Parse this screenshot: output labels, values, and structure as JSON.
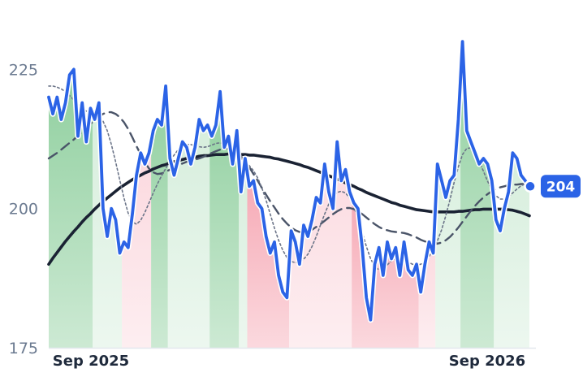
{
  "chart_data": {
    "type": "line",
    "title": "",
    "xlabel": "",
    "ylabel": "",
    "ylim": [
      175,
      236
    ],
    "y_ticks": [
      175,
      200,
      225
    ],
    "x_ticks": [
      "Sep 2025",
      "Sep 2026"
    ],
    "grid": false,
    "legend": "none",
    "last_value_label": "204",
    "colors": {
      "price": "#2b63e6",
      "slow_ma": "#1a2233",
      "mid_ma": "#4a5468",
      "fast_ma": "#6b7488",
      "up_strong": "#8fcf9e",
      "up_light": "#d6eedc",
      "down_strong": "#f6aab6",
      "down_light": "#fbd9df"
    },
    "series": [
      {
        "role": "price",
        "values": [
          220,
          217,
          220,
          216,
          219,
          224,
          225,
          213,
          219,
          212,
          218,
          216,
          219,
          200,
          195,
          200,
          198,
          192,
          194,
          193,
          199,
          206,
          210,
          208,
          210,
          214,
          216,
          215,
          222,
          209,
          206,
          209,
          212,
          211,
          208,
          211,
          216,
          214,
          215,
          213,
          215,
          221,
          211,
          213,
          208,
          214,
          203,
          209,
          204,
          205,
          201,
          200,
          195,
          192,
          194,
          188,
          185,
          184,
          196,
          194,
          190,
          197,
          195,
          198,
          202,
          201,
          208,
          203,
          200,
          212,
          205,
          207,
          203,
          201,
          200,
          193,
          184,
          180,
          190,
          193,
          188,
          194,
          191,
          193,
          188,
          194,
          189,
          188,
          190,
          185,
          190,
          194,
          192,
          208,
          205,
          202,
          205,
          206,
          216,
          230,
          214,
          212,
          210,
          208,
          209,
          208,
          205,
          198,
          196,
          200,
          203,
          210,
          209,
          206,
          205,
          204
        ]
      },
      {
        "role": "slow_ma",
        "values": [
          190.0,
          191.1,
          192.1,
          193.1,
          194.1,
          195.0,
          195.9,
          196.7,
          197.6,
          198.4,
          199.1,
          199.9,
          200.6,
          201.3,
          201.9,
          202.5,
          203.1,
          203.7,
          204.2,
          204.7,
          205.2,
          205.6,
          206.0,
          206.4,
          206.7,
          207.1,
          207.4,
          207.7,
          207.9,
          208.2,
          208.4,
          208.6,
          208.8,
          209.0,
          209.1,
          209.2,
          209.4,
          209.5,
          209.5,
          209.6,
          209.7,
          209.7,
          209.7,
          209.8,
          209.8,
          209.7,
          209.7,
          209.7,
          209.6,
          209.6,
          209.5,
          209.4,
          209.3,
          209.2,
          209.0,
          208.9,
          208.7,
          208.5,
          208.3,
          208.1,
          207.9,
          207.6,
          207.4,
          207.1,
          206.8,
          206.5,
          206.2,
          205.9,
          205.6,
          205.3,
          205.0,
          204.6,
          204.3,
          204.0,
          203.6,
          203.3,
          202.9,
          202.6,
          202.3,
          202.0,
          201.7,
          201.4,
          201.1,
          200.9,
          200.6,
          200.4,
          200.2,
          200.0,
          199.8,
          199.7,
          199.6,
          199.5,
          199.4,
          199.4,
          199.4,
          199.4,
          199.4,
          199.4,
          199.5,
          199.5,
          199.6,
          199.7,
          199.8,
          199.8,
          199.9,
          199.9,
          199.9,
          199.9,
          199.9,
          199.9,
          199.8,
          199.7,
          199.5,
          199.3,
          199.0,
          198.7
        ]
      },
      {
        "role": "mid_ma",
        "values": [
          209.0,
          209.5,
          210.0,
          210.6,
          211.2,
          211.8,
          212.4,
          213.1,
          213.8,
          214.5,
          215.2,
          215.9,
          216.5,
          217.0,
          217.3,
          217.3,
          217.0,
          216.4,
          215.5,
          214.3,
          212.8,
          211.2,
          209.7,
          208.3,
          207.2,
          206.5,
          206.2,
          206.3,
          206.6,
          207.0,
          207.4,
          207.8,
          208.1,
          208.4,
          208.6,
          208.8,
          209.0,
          209.3,
          209.6,
          210.0,
          210.3,
          210.6,
          210.8,
          210.8,
          210.6,
          210.1,
          209.4,
          208.5,
          207.4,
          206.2,
          205.0,
          203.7,
          202.5,
          201.3,
          200.2,
          199.1,
          198.1,
          197.3,
          196.6,
          196.1,
          195.8,
          195.7,
          195.9,
          196.2,
          196.7,
          197.2,
          197.8,
          198.4,
          199.0,
          199.5,
          199.9,
          200.1,
          200.1,
          199.9,
          199.5,
          199.0,
          198.4,
          197.8,
          197.2,
          196.7,
          196.3,
          196.1,
          195.9,
          195.8,
          195.7,
          195.6,
          195.4,
          195.1,
          194.8,
          194.4,
          194.1,
          193.8,
          193.7,
          193.7,
          193.9,
          194.3,
          194.9,
          195.7,
          196.6,
          197.6,
          198.6,
          199.6,
          200.5,
          201.3,
          202.0,
          202.6,
          203.1,
          203.5,
          203.8,
          204.0,
          204.2,
          204.3,
          204.3,
          204.4,
          204.4,
          204.4
        ]
      },
      {
        "role": "fast_ma",
        "values": [
          222.0,
          222.0,
          221.8,
          221.5,
          221.0,
          220.3,
          219.5,
          218.7,
          218.0,
          217.5,
          217.2,
          217.0,
          216.6,
          215.7,
          214.0,
          211.5,
          208.4,
          205.1,
          201.9,
          199.2,
          197.6,
          197.2,
          197.9,
          199.3,
          201.0,
          202.8,
          204.4,
          205.9,
          207.2,
          208.5,
          209.6,
          210.6,
          211.2,
          211.5,
          211.5,
          211.3,
          211.1,
          211.0,
          211.1,
          211.4,
          211.7,
          211.8,
          211.6,
          211.1,
          210.4,
          209.7,
          209.0,
          208.4,
          207.7,
          206.8,
          205.5,
          203.7,
          201.5,
          199.0,
          196.5,
          194.3,
          192.5,
          191.2,
          190.5,
          190.3,
          190.4,
          190.9,
          191.8,
          193.2,
          195.0,
          197.0,
          199.0,
          200.8,
          202.1,
          202.9,
          203.1,
          202.8,
          201.9,
          200.3,
          198.2,
          195.7,
          193.2,
          191.0,
          189.6,
          189.0,
          189.2,
          189.9,
          190.6,
          191.0,
          191.1,
          190.8,
          190.4,
          190.0,
          189.8,
          190.0,
          190.5,
          191.4,
          192.6,
          194.2,
          196.2,
          198.7,
          201.6,
          204.7,
          207.5,
          209.7,
          210.8,
          210.9,
          210.0,
          208.5,
          206.7,
          204.9,
          203.4,
          202.3,
          201.7,
          201.7,
          202.1,
          202.8,
          203.5,
          204.1,
          204.4,
          204.4
        ]
      }
    ],
    "regions": [
      {
        "start": 0,
        "end": 10,
        "type": "up_strong"
      },
      {
        "start": 11,
        "end": 17,
        "type": "up_light"
      },
      {
        "start": 18,
        "end": 24,
        "type": "down_light"
      },
      {
        "start": 25,
        "end": 28,
        "type": "up_strong"
      },
      {
        "start": 29,
        "end": 38,
        "type": "up_light"
      },
      {
        "start": 39,
        "end": 45,
        "type": "up_strong"
      },
      {
        "start": 46,
        "end": 47,
        "type": "up_light"
      },
      {
        "start": 48,
        "end": 57,
        "type": "down_strong"
      },
      {
        "start": 58,
        "end": 72,
        "type": "down_light"
      },
      {
        "start": 73,
        "end": 88,
        "type": "down_strong"
      },
      {
        "start": 89,
        "end": 92,
        "type": "down_light"
      },
      {
        "start": 93,
        "end": 98,
        "type": "up_light"
      },
      {
        "start": 99,
        "end": 106,
        "type": "up_strong"
      },
      {
        "start": 107,
        "end": 115,
        "type": "up_light"
      }
    ]
  }
}
